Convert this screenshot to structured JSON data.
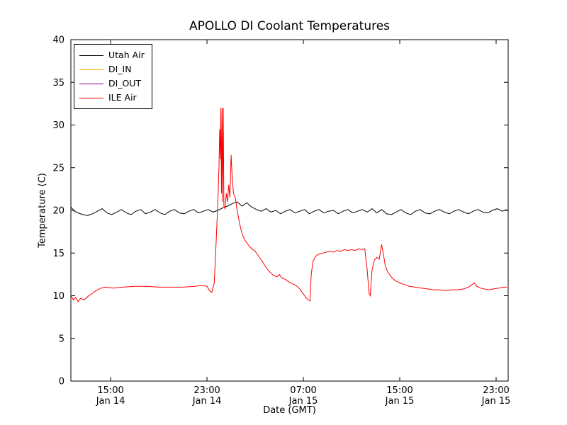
{
  "chart_data": {
    "type": "line",
    "title": "APOLLO DI Coolant Temperatures",
    "xlabel": "Date (GMT)",
    "ylabel": "Temperature (C)",
    "x_domain_hours": [
      11.7,
      48.0
    ],
    "ylim": [
      0,
      40
    ],
    "y_ticks": [
      0,
      5,
      10,
      15,
      20,
      25,
      30,
      35,
      40
    ],
    "x_ticks": [
      {
        "t": 15,
        "time": "15:00",
        "date": "Jan 14"
      },
      {
        "t": 23,
        "time": "23:00",
        "date": "Jan 14"
      },
      {
        "t": 31,
        "time": "07:00",
        "date": "Jan 15"
      },
      {
        "t": 39,
        "time": "15:00",
        "date": "Jan 15"
      },
      {
        "t": 47,
        "time": "23:00",
        "date": "Jan 15"
      }
    ],
    "grid": false,
    "legend_position": "upper-left",
    "frame_color": "#000000",
    "series": [
      {
        "name": "Utah Air",
        "color": "#000000",
        "points": [
          [
            11.7,
            20.4
          ],
          [
            12.0,
            19.9
          ],
          [
            12.3,
            19.7
          ],
          [
            12.7,
            19.5
          ],
          [
            13.1,
            19.4
          ],
          [
            13.5,
            19.6
          ],
          [
            13.9,
            19.9
          ],
          [
            14.3,
            20.2
          ],
          [
            14.7,
            19.7
          ],
          [
            15.1,
            19.5
          ],
          [
            15.5,
            19.8
          ],
          [
            15.9,
            20.1
          ],
          [
            16.3,
            19.7
          ],
          [
            16.7,
            19.5
          ],
          [
            17.1,
            19.9
          ],
          [
            17.5,
            20.1
          ],
          [
            17.9,
            19.6
          ],
          [
            18.3,
            19.8
          ],
          [
            18.7,
            20.1
          ],
          [
            19.1,
            19.7
          ],
          [
            19.5,
            19.5
          ],
          [
            19.9,
            19.9
          ],
          [
            20.3,
            20.1
          ],
          [
            20.7,
            19.7
          ],
          [
            21.1,
            19.6
          ],
          [
            21.5,
            19.9
          ],
          [
            21.9,
            20.1
          ],
          [
            22.3,
            19.7
          ],
          [
            22.7,
            19.9
          ],
          [
            23.1,
            20.1
          ],
          [
            23.5,
            19.8
          ],
          [
            23.9,
            20.0
          ],
          [
            24.3,
            20.3
          ],
          [
            24.7,
            20.5
          ],
          [
            25.1,
            20.8
          ],
          [
            25.5,
            21.0
          ],
          [
            25.9,
            20.5
          ],
          [
            26.3,
            20.9
          ],
          [
            26.7,
            20.4
          ],
          [
            27.1,
            20.1
          ],
          [
            27.5,
            19.9
          ],
          [
            27.9,
            20.2
          ],
          [
            28.3,
            19.8
          ],
          [
            28.7,
            20.0
          ],
          [
            29.1,
            19.6
          ],
          [
            29.5,
            19.9
          ],
          [
            29.9,
            20.1
          ],
          [
            30.3,
            19.7
          ],
          [
            30.7,
            19.9
          ],
          [
            31.1,
            20.1
          ],
          [
            31.5,
            19.6
          ],
          [
            31.9,
            19.9
          ],
          [
            32.3,
            20.1
          ],
          [
            32.7,
            19.7
          ],
          [
            33.1,
            19.9
          ],
          [
            33.5,
            20.0
          ],
          [
            33.9,
            19.6
          ],
          [
            34.3,
            19.9
          ],
          [
            34.7,
            20.1
          ],
          [
            35.1,
            19.7
          ],
          [
            35.5,
            19.9
          ],
          [
            35.9,
            20.1
          ],
          [
            36.3,
            19.8
          ],
          [
            36.7,
            20.2
          ],
          [
            37.1,
            19.7
          ],
          [
            37.5,
            20.1
          ],
          [
            37.9,
            19.6
          ],
          [
            38.3,
            19.5
          ],
          [
            38.7,
            19.8
          ],
          [
            39.1,
            20.1
          ],
          [
            39.5,
            19.7
          ],
          [
            39.9,
            19.5
          ],
          [
            40.3,
            19.9
          ],
          [
            40.7,
            20.1
          ],
          [
            41.1,
            19.7
          ],
          [
            41.5,
            19.6
          ],
          [
            41.9,
            19.9
          ],
          [
            42.3,
            20.1
          ],
          [
            42.7,
            19.8
          ],
          [
            43.1,
            19.6
          ],
          [
            43.5,
            19.9
          ],
          [
            43.9,
            20.1
          ],
          [
            44.3,
            19.8
          ],
          [
            44.7,
            19.6
          ],
          [
            45.1,
            19.9
          ],
          [
            45.5,
            20.1
          ],
          [
            45.9,
            19.8
          ],
          [
            46.3,
            19.7
          ],
          [
            46.7,
            20.0
          ],
          [
            47.1,
            20.2
          ],
          [
            47.5,
            19.9
          ],
          [
            47.9,
            20.1
          ]
        ]
      },
      {
        "name": "DI_IN",
        "color": "#ffa500",
        "points": []
      },
      {
        "name": "DI_OUT",
        "color": "#800080",
        "points": []
      },
      {
        "name": "ILE Air",
        "color": "#ff0000",
        "points": [
          [
            11.7,
            10.1
          ],
          [
            11.9,
            9.5
          ],
          [
            12.1,
            9.8
          ],
          [
            12.3,
            9.3
          ],
          [
            12.5,
            9.7
          ],
          [
            12.8,
            9.5
          ],
          [
            13.1,
            9.9
          ],
          [
            13.4,
            10.2
          ],
          [
            13.8,
            10.6
          ],
          [
            14.2,
            10.9
          ],
          [
            14.6,
            11.0
          ],
          [
            15.2,
            10.9
          ],
          [
            16.0,
            11.0
          ],
          [
            17.0,
            11.1
          ],
          [
            18.0,
            11.1
          ],
          [
            19.0,
            11.0
          ],
          [
            20.0,
            11.0
          ],
          [
            21.0,
            11.0
          ],
          [
            22.0,
            11.1
          ],
          [
            22.6,
            11.2
          ],
          [
            23.0,
            11.1
          ],
          [
            23.2,
            10.6
          ],
          [
            23.4,
            10.4
          ],
          [
            23.6,
            11.5
          ],
          [
            23.75,
            16.0
          ],
          [
            23.9,
            21.0
          ],
          [
            24.0,
            25.5
          ],
          [
            24.05,
            29.5
          ],
          [
            24.1,
            26.0
          ],
          [
            24.15,
            32.0
          ],
          [
            24.2,
            22.0
          ],
          [
            24.25,
            32.0
          ],
          [
            24.3,
            21.0
          ],
          [
            24.35,
            32.0
          ],
          [
            24.4,
            20.5
          ],
          [
            24.5,
            20.2
          ],
          [
            24.6,
            22.0
          ],
          [
            24.7,
            21.0
          ],
          [
            24.8,
            23.0
          ],
          [
            24.9,
            21.5
          ],
          [
            25.0,
            26.5
          ],
          [
            25.1,
            23.5
          ],
          [
            25.2,
            22.0
          ],
          [
            25.35,
            21.5
          ],
          [
            25.5,
            20.0
          ],
          [
            25.7,
            18.5
          ],
          [
            25.9,
            17.3
          ],
          [
            26.1,
            16.6
          ],
          [
            26.4,
            16.0
          ],
          [
            26.7,
            15.5
          ],
          [
            27.0,
            15.2
          ],
          [
            27.3,
            14.6
          ],
          [
            27.6,
            14.0
          ],
          [
            27.9,
            13.3
          ],
          [
            28.2,
            12.8
          ],
          [
            28.5,
            12.4
          ],
          [
            28.8,
            12.2
          ],
          [
            29.0,
            12.5
          ],
          [
            29.2,
            12.1
          ],
          [
            29.5,
            11.9
          ],
          [
            29.8,
            11.6
          ],
          [
            30.1,
            11.4
          ],
          [
            30.4,
            11.2
          ],
          [
            30.7,
            10.8
          ],
          [
            31.0,
            10.2
          ],
          [
            31.2,
            9.8
          ],
          [
            31.4,
            9.5
          ],
          [
            31.55,
            9.4
          ],
          [
            31.65,
            12.5
          ],
          [
            31.8,
            14.0
          ],
          [
            32.0,
            14.6
          ],
          [
            32.3,
            14.9
          ],
          [
            32.6,
            15.0
          ],
          [
            32.9,
            15.1
          ],
          [
            33.2,
            15.2
          ],
          [
            33.5,
            15.1
          ],
          [
            33.8,
            15.3
          ],
          [
            34.1,
            15.2
          ],
          [
            34.4,
            15.4
          ],
          [
            34.7,
            15.3
          ],
          [
            35.0,
            15.4
          ],
          [
            35.3,
            15.3
          ],
          [
            35.6,
            15.5
          ],
          [
            35.9,
            15.4
          ],
          [
            36.1,
            15.5
          ],
          [
            36.3,
            13.0
          ],
          [
            36.45,
            10.3
          ],
          [
            36.55,
            10.0
          ],
          [
            36.7,
            13.0
          ],
          [
            36.9,
            14.2
          ],
          [
            37.1,
            14.5
          ],
          [
            37.3,
            14.3
          ],
          [
            37.5,
            16.0
          ],
          [
            37.65,
            14.8
          ],
          [
            37.8,
            13.5
          ],
          [
            38.0,
            12.8
          ],
          [
            38.3,
            12.2
          ],
          [
            38.6,
            11.8
          ],
          [
            39.0,
            11.5
          ],
          [
            39.4,
            11.3
          ],
          [
            39.8,
            11.1
          ],
          [
            40.3,
            11.0
          ],
          [
            40.8,
            10.9
          ],
          [
            41.3,
            10.8
          ],
          [
            41.8,
            10.7
          ],
          [
            42.3,
            10.7
          ],
          [
            42.8,
            10.6
          ],
          [
            43.3,
            10.7
          ],
          [
            43.8,
            10.7
          ],
          [
            44.3,
            10.8
          ],
          [
            44.7,
            11.0
          ],
          [
            45.0,
            11.3
          ],
          [
            45.2,
            11.5
          ],
          [
            45.4,
            11.1
          ],
          [
            45.7,
            10.9
          ],
          [
            46.0,
            10.8
          ],
          [
            46.4,
            10.7
          ],
          [
            46.8,
            10.8
          ],
          [
            47.2,
            10.9
          ],
          [
            47.6,
            11.0
          ],
          [
            47.9,
            11.0
          ]
        ]
      }
    ]
  }
}
